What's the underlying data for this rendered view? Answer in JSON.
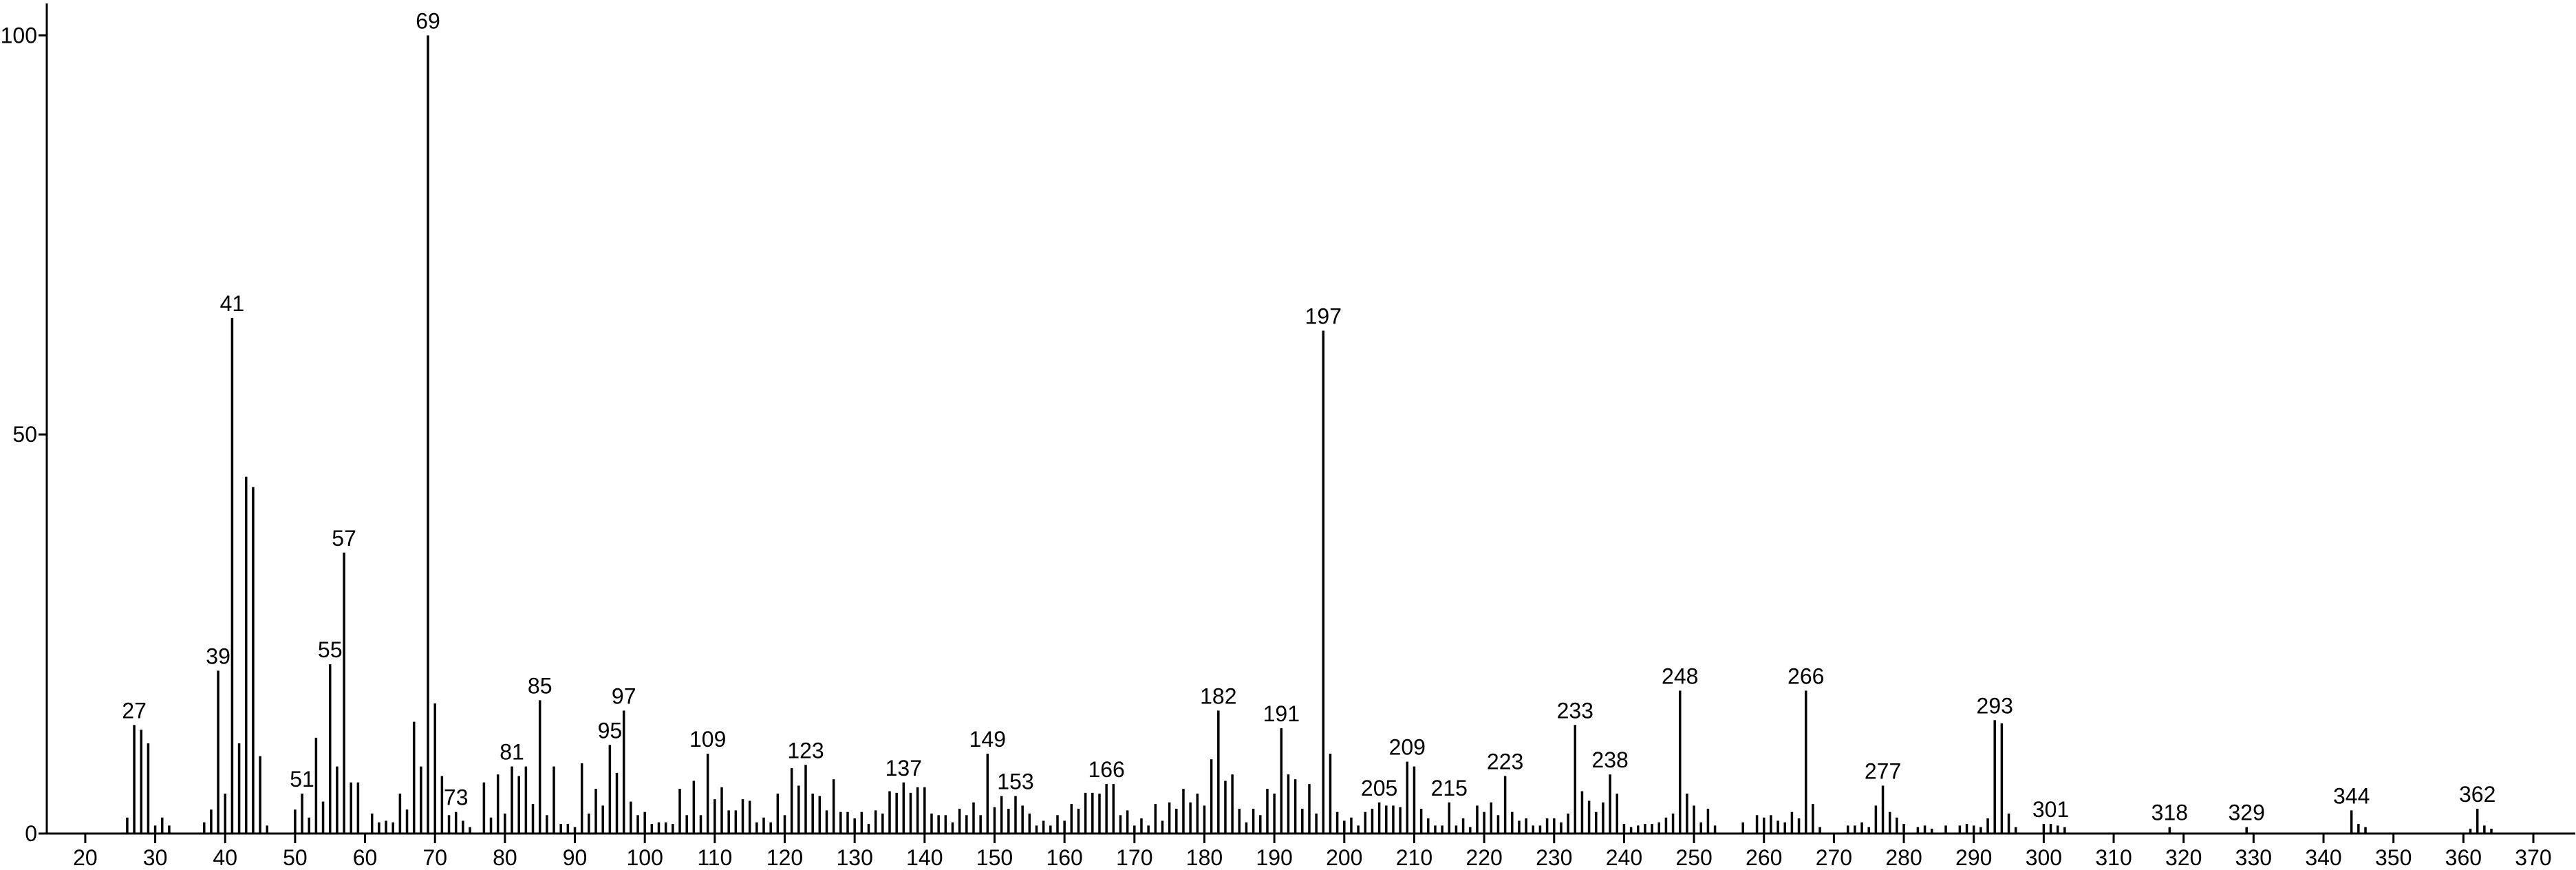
{
  "chart_data": {
    "type": "bar",
    "color": "#000000",
    "x": [
      26,
      27,
      28,
      29,
      30,
      31,
      32,
      37,
      38,
      39,
      40,
      41,
      42,
      43,
      44,
      45,
      46,
      50,
      51,
      52,
      53,
      54,
      55,
      56,
      57,
      58,
      59,
      61,
      62,
      63,
      64,
      65,
      66,
      67,
      68,
      69,
      70,
      71,
      72,
      73,
      74,
      75,
      77,
      78,
      79,
      80,
      81,
      82,
      83,
      84,
      85,
      86,
      87,
      88,
      89,
      90,
      91,
      92,
      93,
      94,
      95,
      96,
      97,
      98,
      99,
      100,
      101,
      102,
      103,
      104,
      105,
      106,
      107,
      108,
      109,
      110,
      111,
      112,
      113,
      114,
      115,
      116,
      117,
      118,
      119,
      120,
      121,
      122,
      123,
      124,
      125,
      126,
      127,
      128,
      129,
      130,
      131,
      132,
      133,
      134,
      135,
      136,
      137,
      138,
      139,
      140,
      141,
      142,
      143,
      144,
      145,
      146,
      147,
      148,
      149,
      150,
      151,
      152,
      153,
      154,
      155,
      156,
      157,
      158,
      159,
      160,
      161,
      162,
      163,
      164,
      165,
      166,
      167,
      168,
      169,
      170,
      171,
      172,
      173,
      174,
      175,
      176,
      177,
      178,
      179,
      180,
      181,
      182,
      183,
      184,
      185,
      186,
      187,
      188,
      189,
      190,
      191,
      192,
      193,
      194,
      195,
      196,
      197,
      198,
      199,
      200,
      201,
      202,
      203,
      204,
      205,
      206,
      207,
      208,
      209,
      210,
      211,
      212,
      213,
      214,
      215,
      216,
      217,
      218,
      219,
      220,
      221,
      222,
      223,
      224,
      225,
      226,
      227,
      228,
      229,
      230,
      231,
      232,
      233,
      234,
      235,
      236,
      237,
      238,
      239,
      240,
      241,
      242,
      243,
      244,
      245,
      246,
      247,
      248,
      249,
      250,
      251,
      252,
      253,
      257,
      259,
      260,
      261,
      262,
      263,
      264,
      265,
      266,
      267,
      268,
      272,
      273,
      274,
      275,
      276,
      277,
      278,
      279,
      280,
      282,
      283,
      284,
      286,
      288,
      289,
      290,
      291,
      292,
      293,
      294,
      295,
      296,
      300,
      301,
      302,
      303,
      318,
      329,
      344,
      345,
      346,
      361,
      362,
      363,
      364
    ],
    "values": [
      2,
      13.6,
      13,
      11.3,
      1,
      2,
      1,
      1.4,
      3,
      20.4,
      5,
      64.6,
      11.3,
      44.7,
      43.4,
      9.7,
      1,
      3,
      5,
      2,
      12,
      4,
      21.2,
      8.4,
      35.2,
      6.4,
      6.4,
      2.5,
      1.4,
      1.6,
      1.4,
      5,
      3,
      14,
      8.4,
      100,
      16.3,
      7.2,
      2.3,
      2.7,
      1.6,
      0.8,
      6.4,
      2,
      7.4,
      2.5,
      8.4,
      7.2,
      8.4,
      3.7,
      16.7,
      2.3,
      8.4,
      1.2,
      1.2,
      0.8,
      8.8,
      2.5,
      5.6,
      3.5,
      11.1,
      7.6,
      15.4,
      4,
      2.3,
      2.7,
      1.2,
      1.4,
      1.4,
      1.2,
      5.6,
      2.3,
      6.6,
      2.3,
      10,
      4.3,
      5.8,
      2.9,
      2.9,
      4.3,
      4.1,
      1.4,
      2,
      1.4,
      5,
      2.3,
      8.2,
      6,
      8.6,
      5,
      4.7,
      2.9,
      6.8,
      2.7,
      2.7,
      1.9,
      2.7,
      1.2,
      2.9,
      2.5,
      5.3,
      5.1,
      6.4,
      5.1,
      5.8,
      5.8,
      2.5,
      2.3,
      2.3,
      1.4,
      3.1,
      2.3,
      3.9,
      2.3,
      10,
      3.3,
      4.7,
      3.1,
      4.7,
      3.5,
      2.5,
      1,
      1.6,
      1,
      2.3,
      1.6,
      3.7,
      3.1,
      5.1,
      5.1,
      5,
      6.2,
      6.2,
      2.3,
      2.9,
      1,
      1.9,
      1,
      3.7,
      1.6,
      3.9,
      3.1,
      5.6,
      3.9,
      5,
      3.5,
      9.3,
      15.4,
      6.6,
      7.4,
      3.1,
      1.4,
      3.1,
      2.3,
      5.6,
      5,
      13.2,
      7.4,
      6.8,
      3.1,
      6.2,
      2.5,
      63,
      10,
      2.7,
      1.6,
      2,
      1,
      2.7,
      3.1,
      3.9,
      3.5,
      3.5,
      3.3,
      9,
      8.4,
      3.1,
      1.9,
      1,
      1,
      3.9,
      1,
      1.9,
      0.8,
      3.5,
      2.7,
      3.9,
      2.3,
      7.2,
      2.7,
      1.6,
      1.9,
      1,
      1,
      1.9,
      1.9,
      1.4,
      2.5,
      13.6,
      5.3,
      4.1,
      2.7,
      3.9,
      7.4,
      5,
      1.2,
      0.8,
      1,
      1.2,
      1.2,
      1.4,
      2,
      2.5,
      17.9,
      5,
      3.5,
      1.4,
      3.1,
      1,
      1.4,
      2.3,
      2,
      2.3,
      1.6,
      1.4,
      2.7,
      1.9,
      17.9,
      3.7,
      0.8,
      1,
      1,
      1.4,
      0.8,
      3.5,
      6,
      2.7,
      2,
      1.2,
      0.8,
      1,
      0.6,
      1,
      1,
      1.2,
      1,
      0.8,
      1.9,
      14.2,
      13.8,
      2.5,
      0.8,
      1.2,
      1.2,
      1,
      0.8,
      0.8,
      0.8,
      2.9,
      1.2,
      0.8,
      0.6,
      3.1,
      1,
      0.6
    ],
    "peak_labels": [
      27,
      39,
      41,
      51,
      55,
      57,
      69,
      73,
      81,
      85,
      95,
      97,
      109,
      123,
      137,
      149,
      153,
      166,
      182,
      191,
      197,
      205,
      209,
      215,
      223,
      233,
      238,
      248,
      266,
      277,
      293,
      301,
      318,
      329,
      344,
      362
    ],
    "xlim": [
      14.5,
      376
    ],
    "xticks": [
      20,
      30,
      40,
      50,
      60,
      70,
      80,
      90,
      100,
      110,
      120,
      130,
      140,
      150,
      160,
      170,
      180,
      190,
      200,
      210,
      220,
      230,
      240,
      250,
      260,
      270,
      280,
      290,
      300,
      310,
      320,
      330,
      340,
      350,
      360,
      370
    ],
    "ylim": [
      0,
      104
    ],
    "yticks": [
      0,
      50,
      100
    ]
  }
}
